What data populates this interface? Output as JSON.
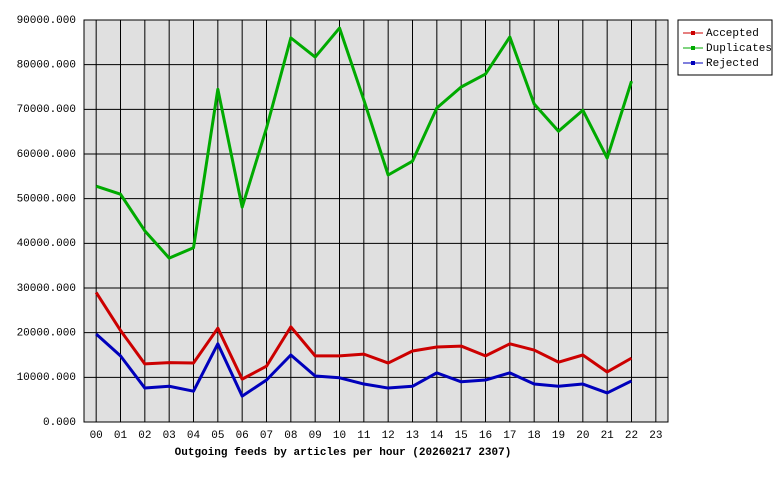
{
  "chart_data": {
    "type": "line",
    "xlabel": "Outgoing feeds by articles per hour (20260217 2307)",
    "categories": [
      "00",
      "01",
      "02",
      "03",
      "04",
      "05",
      "06",
      "07",
      "08",
      "09",
      "10",
      "11",
      "12",
      "13",
      "14",
      "15",
      "16",
      "17",
      "18",
      "19",
      "20",
      "21",
      "22",
      "23"
    ],
    "series": [
      {
        "name": "Accepted",
        "color": "#cc0000",
        "values": [
          29000,
          20500,
          13000,
          13300,
          13200,
          21000,
          9600,
          12500,
          21300,
          14800,
          14800,
          15200,
          13200,
          15900,
          16800,
          17000,
          14800,
          17500,
          16100,
          13400,
          15000,
          11200,
          14300,
          null
        ]
      },
      {
        "name": "Duplicates",
        "color": "#00aa00",
        "values": [
          52800,
          51000,
          42800,
          36700,
          39000,
          74500,
          48100,
          65800,
          86000,
          81700,
          88200,
          72100,
          55300,
          58400,
          70300,
          75000,
          77900,
          86200,
          71200,
          65100,
          69800,
          59100,
          76300,
          null
        ]
      },
      {
        "name": "Rejected",
        "color": "#0000bb",
        "values": [
          19700,
          14800,
          7600,
          8000,
          6900,
          17500,
          5800,
          9400,
          15000,
          10300,
          9900,
          8500,
          7600,
          8000,
          11000,
          9000,
          9400,
          11000,
          8500,
          8000,
          8500,
          6500,
          9200,
          null
        ]
      }
    ],
    "ylim": [
      0,
      90000
    ],
    "yticks": [
      {
        "value": 0,
        "label": "0.000"
      },
      {
        "value": 10000,
        "label": "10000.000"
      },
      {
        "value": 20000,
        "label": "20000.000"
      },
      {
        "value": 30000,
        "label": "30000.000"
      },
      {
        "value": 40000,
        "label": "40000.000"
      },
      {
        "value": 50000,
        "label": "50000.000"
      },
      {
        "value": 60000,
        "label": "60000.000"
      },
      {
        "value": 70000,
        "label": "70000.000"
      },
      {
        "value": 80000,
        "label": "80000.000"
      },
      {
        "value": 90000,
        "label": "90000.000"
      }
    ],
    "grid": true,
    "legend": "top-right"
  }
}
